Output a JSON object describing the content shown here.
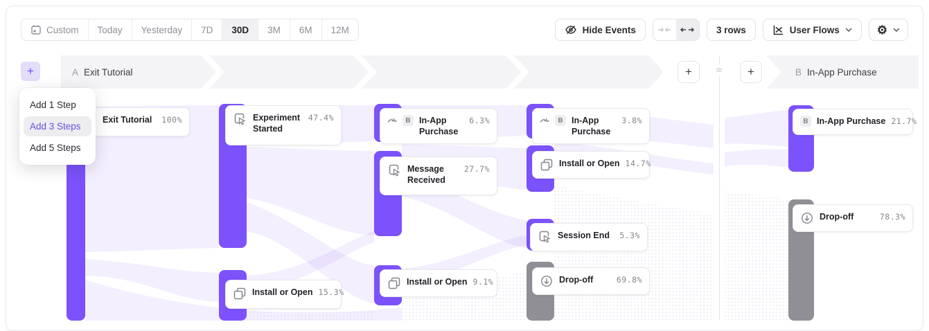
{
  "toolbar": {
    "date_ranges": [
      {
        "label": "Custom",
        "icon": "calendar-icon",
        "active": false
      },
      {
        "label": "Today",
        "active": false
      },
      {
        "label": "Yesterday",
        "active": false
      },
      {
        "label": "7D",
        "active": false
      },
      {
        "label": "30D",
        "active": true
      },
      {
        "label": "3M",
        "active": false
      },
      {
        "label": "6M",
        "active": false
      },
      {
        "label": "12M",
        "active": false
      }
    ],
    "hide_events_label": "Hide Events",
    "rows_label": "3 rows",
    "view_selector_label": "User Flows"
  },
  "add_steps_menu": {
    "items": [
      {
        "label": "Add 1 Step",
        "active": false
      },
      {
        "label": "Add 3 Steps",
        "active": true
      },
      {
        "label": "Add 5 Steps",
        "active": false
      }
    ]
  },
  "flows": {
    "a": {
      "letter": "A",
      "name": "Exit Tutorial"
    },
    "b": {
      "letter": "B",
      "name": "In-App Purchase"
    }
  },
  "flow_separator": {
    "symbol": "≈"
  },
  "nodes": [
    {
      "id": "exit-tutorial",
      "flow": "A",
      "label": "Exit Tutorial",
      "pct": "100%",
      "icon": "event-click-icon",
      "badge": "",
      "kind": "event"
    },
    {
      "id": "experiment-started",
      "flow": "A",
      "label": "Experiment Started",
      "pct": "47.4%",
      "icon": "event-click-icon",
      "badge": "",
      "kind": "event"
    },
    {
      "id": "install-open-s2",
      "flow": "A",
      "label": "Install or Open",
      "pct": "15.3%",
      "icon": "copy-icon",
      "badge": "",
      "kind": "event"
    },
    {
      "id": "in-app-purchase-s3",
      "flow": "A",
      "label": "In-App Purchase",
      "pct": "6.3%",
      "icon": "jump-arrow-icon",
      "badge": "B",
      "kind": "event"
    },
    {
      "id": "message-received",
      "flow": "A",
      "label": "Message Received",
      "pct": "27.7%",
      "icon": "event-click-icon",
      "badge": "",
      "kind": "event"
    },
    {
      "id": "install-open-s3",
      "flow": "A",
      "label": "Install or Open",
      "pct": "9.1%",
      "icon": "copy-icon",
      "badge": "",
      "kind": "event"
    },
    {
      "id": "in-app-purchase-s4",
      "flow": "A",
      "label": "In-App Purchase",
      "pct": "3.8%",
      "icon": "jump-arrow-icon",
      "badge": "B",
      "kind": "event"
    },
    {
      "id": "install-open-s4",
      "flow": "A",
      "label": "Install or Open",
      "pct": "14.7%",
      "icon": "copy-icon",
      "badge": "",
      "kind": "event"
    },
    {
      "id": "session-end",
      "flow": "A",
      "label": "Session End",
      "pct": "5.3%",
      "icon": "event-click-icon",
      "badge": "",
      "kind": "event"
    },
    {
      "id": "drop-off-a",
      "flow": "A",
      "label": "Drop-off",
      "pct": "69.8%",
      "icon": "drop-off-icon",
      "badge": "",
      "kind": "dropoff"
    },
    {
      "id": "in-app-purchase-b",
      "flow": "B",
      "label": "In-App Purchase",
      "pct": "21.7%",
      "icon": "",
      "badge": "B",
      "kind": "event"
    },
    {
      "id": "drop-off-b",
      "flow": "B",
      "label": "Drop-off",
      "pct": "78.3%",
      "icon": "drop-off-icon",
      "badge": "",
      "kind": "dropoff"
    }
  ],
  "colors": {
    "accent_purple": "#7b52f6",
    "bar_purple": "#7b52fb",
    "bar_gray": "#8f8f95",
    "ribbon_purple": "#7b52f6",
    "band_gray": "#f4f4f6",
    "menu_active_text": "#6a4fe0"
  }
}
